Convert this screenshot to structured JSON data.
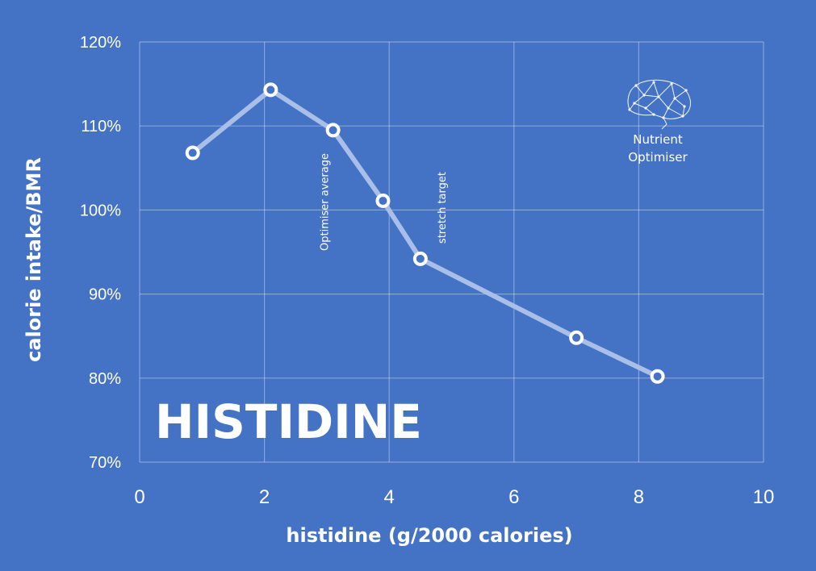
{
  "chart_data": {
    "type": "line",
    "title": "HISTIDINE",
    "xlabel": "histidine (g/2000 calories)",
    "ylabel": "calorie intake/BMR",
    "xlim": [
      0,
      10
    ],
    "ylim": [
      70,
      120
    ],
    "x_ticks": [
      "0",
      "2",
      "4",
      "6",
      "8",
      "10"
    ],
    "y_ticks": [
      "70%",
      "80%",
      "90%",
      "100%",
      "110%",
      "120%"
    ],
    "grid": true,
    "series": [
      {
        "x": [
          0.85,
          2.1,
          3.1,
          3.9,
          4.5,
          7.0,
          8.3
        ],
        "y": [
          106.8,
          114.3,
          109.5,
          101.1,
          94.2,
          84.8,
          80.2
        ]
      }
    ],
    "annotations": [
      {
        "text": "Optimiser average",
        "x": 3.1
      },
      {
        "text": "stretch target",
        "x": 4.9
      }
    ],
    "colors": {
      "background": "#4472c4",
      "line": "#a9bfe8",
      "marker_fill": "#4472c4",
      "marker_stroke": "#ffffff",
      "text": "#ffffff"
    }
  },
  "logo": {
    "line1": "Nutrient",
    "line2": "Optimiser",
    "icon": "brain-icon"
  }
}
